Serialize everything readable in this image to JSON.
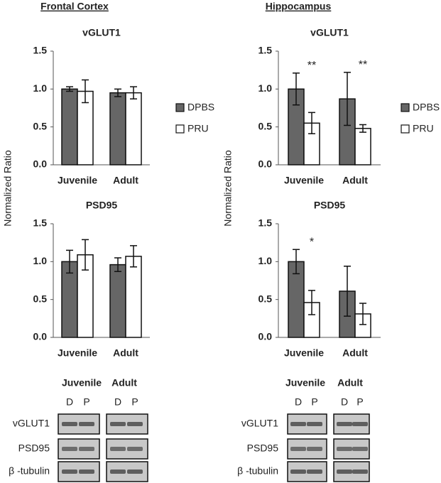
{
  "sections": [
    {
      "title": "Frontal Cortex"
    },
    {
      "title": "Hippocampus"
    }
  ],
  "chart_data": [
    {
      "type": "bar",
      "title": "vGLUT1",
      "ylabel": "Normalized Ratio",
      "categories": [
        "Juvenile",
        "Adult"
      ],
      "series": [
        {
          "name": "DPBS",
          "color": "#666666",
          "values": [
            1.0,
            0.95
          ],
          "errors": [
            0.03,
            0.05
          ]
        },
        {
          "name": "PRU",
          "color": "#ffffff",
          "values": [
            0.97,
            0.95
          ],
          "errors": [
            0.15,
            0.08
          ]
        }
      ],
      "ylim": [
        0,
        1.5
      ],
      "yticks": [
        {
          "value": 0,
          "label": "0.0"
        },
        {
          "value": 0.5,
          "label": "0.5"
        },
        {
          "value": 1,
          "label": "1.0"
        },
        {
          "value": 1.5,
          "label": "1.5"
        }
      ],
      "legend": "right"
    },
    {
      "type": "bar",
      "title": "PSD95",
      "categories": [
        "Juvenile",
        "Adult"
      ],
      "series": [
        {
          "name": "DPBS",
          "color": "#666666",
          "values": [
            1.0,
            0.96
          ],
          "errors": [
            0.15,
            0.09
          ]
        },
        {
          "name": "PRU",
          "color": "#ffffff",
          "values": [
            1.09,
            1.07
          ],
          "errors": [
            0.2,
            0.14
          ]
        }
      ],
      "ylim": [
        0,
        1.5
      ],
      "yticks": [
        {
          "value": 0,
          "label": "0.0"
        },
        {
          "value": 0.5,
          "label": "0.5"
        },
        {
          "value": 1,
          "label": "1.0"
        },
        {
          "value": 1.5,
          "label": "1.5"
        }
      ]
    },
    {
      "type": "bar",
      "title": "vGLUT1",
      "ylabel": "Normalized Ratio",
      "categories": [
        "Juvenile",
        "Adult"
      ],
      "series": [
        {
          "name": "DPBS",
          "color": "#666666",
          "values": [
            1.0,
            0.87
          ],
          "errors": [
            0.21,
            0.35
          ]
        },
        {
          "name": "PRU",
          "color": "#ffffff",
          "values": [
            0.55,
            0.48
          ],
          "errors": [
            0.14,
            0.05
          ]
        }
      ],
      "annotations": [
        "**",
        "**"
      ],
      "ylim": [
        0,
        1.5
      ],
      "yticks": [
        {
          "value": 0,
          "label": "0.0"
        },
        {
          "value": 0.5,
          "label": "0.5"
        },
        {
          "value": 1,
          "label": "1.0"
        },
        {
          "value": 1.5,
          "label": "1.5"
        }
      ],
      "legend": "right"
    },
    {
      "type": "bar",
      "title": "PSD95",
      "categories": [
        "Juvenile",
        "Adult"
      ],
      "series": [
        {
          "name": "DPBS",
          "color": "#666666",
          "values": [
            1.0,
            0.61
          ],
          "errors": [
            0.16,
            0.33
          ]
        },
        {
          "name": "PRU",
          "color": "#ffffff",
          "values": [
            0.46,
            0.31
          ],
          "errors": [
            0.16,
            0.14
          ]
        }
      ],
      "annotations": [
        "*",
        null
      ],
      "ylim": [
        0,
        1.5
      ],
      "yticks": [
        {
          "value": 0,
          "label": "0.0"
        },
        {
          "value": 0.5,
          "label": "0.5"
        },
        {
          "value": 1,
          "label": "1.0"
        },
        {
          "value": 1.5,
          "label": "1.5"
        }
      ]
    }
  ],
  "blots": [
    {
      "groups": [
        "Juvenile",
        "Adult"
      ],
      "lanes": [
        "D",
        "P",
        "D",
        "P"
      ],
      "rows": [
        "vGLUT1",
        "PSD95",
        "β -tubulin"
      ]
    },
    {
      "groups": [
        "Juvenile",
        "Adult"
      ],
      "lanes": [
        "D",
        "P",
        "D",
        "P"
      ],
      "rows": [
        "vGLUT1",
        "PSD95",
        "β -tubulin"
      ]
    }
  ]
}
